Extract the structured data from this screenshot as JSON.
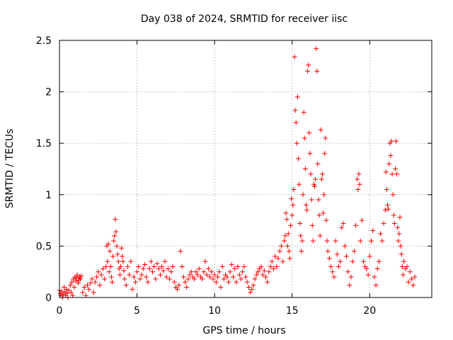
{
  "chart_data": {
    "type": "scatter",
    "title": "Day 038 of 2024, SRMTID for receiver iisc",
    "xlabel": "GPS time / hours",
    "ylabel": "SRMTID / TECUs",
    "xlim": [
      0,
      24
    ],
    "ylim": [
      0,
      2.5
    ],
    "x_ticks": [
      0,
      5,
      10,
      15,
      20
    ],
    "x_tick_labels": [
      "0",
      "5",
      "10",
      "15",
      "20"
    ],
    "y_ticks": [
      0,
      0.5,
      1,
      1.5,
      2,
      2.5
    ],
    "y_tick_labels": [
      "0",
      "0.5",
      "1",
      "1.5",
      "2",
      "2.5"
    ],
    "grid": true,
    "marker": "+",
    "marker_color": "#ff0000",
    "series": [
      {
        "name": "SRMTID",
        "points": [
          [
            0.0,
            0.07
          ],
          [
            0.05,
            0.04
          ],
          [
            0.1,
            0.02
          ],
          [
            0.15,
            0.06
          ],
          [
            0.2,
            0.0
          ],
          [
            0.25,
            0.03
          ],
          [
            0.3,
            0.1
          ],
          [
            0.35,
            0.05
          ],
          [
            0.4,
            0.02
          ],
          [
            0.45,
            0.08
          ],
          [
            0.5,
            0.04
          ],
          [
            0.55,
            0.0
          ],
          [
            0.6,
            0.07
          ],
          [
            0.7,
            0.12
          ],
          [
            0.75,
            0.05
          ],
          [
            0.8,
            0.15
          ],
          [
            0.85,
            0.02
          ],
          [
            0.9,
            0.18
          ],
          [
            0.95,
            0.1
          ],
          [
            1.0,
            0.2
          ],
          [
            1.05,
            0.16
          ],
          [
            1.1,
            0.19
          ],
          [
            1.15,
            0.22
          ],
          [
            1.2,
            0.14
          ],
          [
            1.25,
            0.17
          ],
          [
            1.3,
            0.2
          ],
          [
            1.35,
            0.18
          ],
          [
            1.4,
            0.21
          ],
          [
            1.5,
            0.05
          ],
          [
            1.6,
            0.1
          ],
          [
            1.7,
            0.02
          ],
          [
            1.8,
            0.12
          ],
          [
            1.9,
            0.08
          ],
          [
            2.0,
            0.14
          ],
          [
            2.1,
            0.18
          ],
          [
            2.2,
            0.05
          ],
          [
            2.3,
            0.15
          ],
          [
            2.4,
            0.2
          ],
          [
            2.5,
            0.25
          ],
          [
            2.6,
            0.12
          ],
          [
            2.7,
            0.22
          ],
          [
            2.8,
            0.28
          ],
          [
            2.9,
            0.18
          ],
          [
            3.0,
            0.3
          ],
          [
            3.05,
            0.5
          ],
          [
            3.1,
            0.35
          ],
          [
            3.15,
            0.52
          ],
          [
            3.2,
            0.25
          ],
          [
            3.25,
            0.45
          ],
          [
            3.3,
            0.3
          ],
          [
            3.35,
            0.2
          ],
          [
            3.4,
            0.15
          ],
          [
            3.45,
            0.4
          ],
          [
            3.5,
            0.55
          ],
          [
            3.55,
            0.6
          ],
          [
            3.6,
            0.76
          ],
          [
            3.65,
            0.64
          ],
          [
            3.7,
            0.5
          ],
          [
            3.75,
            0.42
          ],
          [
            3.8,
            0.35
          ],
          [
            3.85,
            0.28
          ],
          [
            3.9,
            0.22
          ],
          [
            3.95,
            0.3
          ],
          [
            4.0,
            0.48
          ],
          [
            4.05,
            0.4
          ],
          [
            4.1,
            0.35
          ],
          [
            4.15,
            0.26
          ],
          [
            4.2,
            0.18
          ],
          [
            4.3,
            0.12
          ],
          [
            4.4,
            0.3
          ],
          [
            4.5,
            0.22
          ],
          [
            4.6,
            0.35
          ],
          [
            4.7,
            0.08
          ],
          [
            4.8,
            0.2
          ],
          [
            4.9,
            0.15
          ],
          [
            5.0,
            0.25
          ],
          [
            5.1,
            0.3
          ],
          [
            5.2,
            0.18
          ],
          [
            5.3,
            0.22
          ],
          [
            5.4,
            0.28
          ],
          [
            5.5,
            0.32
          ],
          [
            5.6,
            0.2
          ],
          [
            5.7,
            0.15
          ],
          [
            5.8,
            0.28
          ],
          [
            5.9,
            0.35
          ],
          [
            6.0,
            0.25
          ],
          [
            6.1,
            0.3
          ],
          [
            6.2,
            0.18
          ],
          [
            6.3,
            0.33
          ],
          [
            6.4,
            0.28
          ],
          [
            6.5,
            0.22
          ],
          [
            6.6,
            0.3
          ],
          [
            6.7,
            0.26
          ],
          [
            6.8,
            0.35
          ],
          [
            6.9,
            0.2
          ],
          [
            7.0,
            0.28
          ],
          [
            7.1,
            0.18
          ],
          [
            7.2,
            0.25
          ],
          [
            7.3,
            0.3
          ],
          [
            7.4,
            0.15
          ],
          [
            7.5,
            0.1
          ],
          [
            7.6,
            0.08
          ],
          [
            7.7,
            0.12
          ],
          [
            7.8,
            0.45
          ],
          [
            7.9,
            0.3
          ],
          [
            8.0,
            0.2
          ],
          [
            8.1,
            0.15
          ],
          [
            8.2,
            0.1
          ],
          [
            8.3,
            0.18
          ],
          [
            8.4,
            0.22
          ],
          [
            8.5,
            0.25
          ],
          [
            8.6,
            0.2
          ],
          [
            8.7,
            0.18
          ],
          [
            8.8,
            0.25
          ],
          [
            8.9,
            0.22
          ],
          [
            9.0,
            0.28
          ],
          [
            9.1,
            0.2
          ],
          [
            9.2,
            0.18
          ],
          [
            9.3,
            0.25
          ],
          [
            9.4,
            0.35
          ],
          [
            9.5,
            0.22
          ],
          [
            9.6,
            0.28
          ],
          [
            9.7,
            0.2
          ],
          [
            9.8,
            0.25
          ],
          [
            9.9,
            0.18
          ],
          [
            10.0,
            0.22
          ],
          [
            10.1,
            0.15
          ],
          [
            10.2,
            0.2
          ],
          [
            10.3,
            0.25
          ],
          [
            10.4,
            0.1
          ],
          [
            10.5,
            0.3
          ],
          [
            10.6,
            0.18
          ],
          [
            10.7,
            0.22
          ],
          [
            10.8,
            0.2
          ],
          [
            10.9,
            0.15
          ],
          [
            11.0,
            0.25
          ],
          [
            11.1,
            0.32
          ],
          [
            11.2,
            0.2
          ],
          [
            11.3,
            0.28
          ],
          [
            11.4,
            0.15
          ],
          [
            11.5,
            0.3
          ],
          [
            11.6,
            0.22
          ],
          [
            11.7,
            0.18
          ],
          [
            11.8,
            0.25
          ],
          [
            11.9,
            0.3
          ],
          [
            12.0,
            0.2
          ],
          [
            12.1,
            0.15
          ],
          [
            12.2,
            0.1
          ],
          [
            12.3,
            0.05
          ],
          [
            12.4,
            0.08
          ],
          [
            12.5,
            0.12
          ],
          [
            12.6,
            0.18
          ],
          [
            12.7,
            0.22
          ],
          [
            12.8,
            0.25
          ],
          [
            12.9,
            0.28
          ],
          [
            13.0,
            0.3
          ],
          [
            13.1,
            0.22
          ],
          [
            13.2,
            0.26
          ],
          [
            13.3,
            0.2
          ],
          [
            13.4,
            0.15
          ],
          [
            13.5,
            0.25
          ],
          [
            13.6,
            0.3
          ],
          [
            13.7,
            0.35
          ],
          [
            13.8,
            0.28
          ],
          [
            13.9,
            0.4
          ],
          [
            14.0,
            0.3
          ],
          [
            14.1,
            0.38
          ],
          [
            14.2,
            0.45
          ],
          [
            14.3,
            0.5
          ],
          [
            14.4,
            0.35
          ],
          [
            14.5,
            0.55
          ],
          [
            14.55,
            0.6
          ],
          [
            14.6,
            0.82
          ],
          [
            14.65,
            0.76
          ],
          [
            14.7,
            0.5
          ],
          [
            14.75,
            0.62
          ],
          [
            14.8,
            0.45
          ],
          [
            14.85,
            0.38
          ],
          [
            14.9,
            0.7
          ],
          [
            14.95,
            0.96
          ],
          [
            15.0,
            0.8
          ],
          [
            15.05,
            0.9
          ],
          [
            15.1,
            1.05
          ],
          [
            15.15,
            2.34
          ],
          [
            15.2,
            1.82
          ],
          [
            15.25,
            1.7
          ],
          [
            15.3,
            1.5
          ],
          [
            15.35,
            1.95
          ],
          [
            15.4,
            1.35
          ],
          [
            15.45,
            1.1
          ],
          [
            15.5,
            0.72
          ],
          [
            15.55,
            0.6
          ],
          [
            15.6,
            0.45
          ],
          [
            15.65,
            0.55
          ],
          [
            15.7,
            1.0
          ],
          [
            15.75,
            1.8
          ],
          [
            15.8,
            1.55
          ],
          [
            15.85,
            1.25
          ],
          [
            15.9,
            0.9
          ],
          [
            15.95,
            0.85
          ],
          [
            16.0,
            2.2
          ],
          [
            16.05,
            2.26
          ],
          [
            16.1,
            1.6
          ],
          [
            16.15,
            1.4
          ],
          [
            16.2,
            1.2
          ],
          [
            16.25,
            0.95
          ],
          [
            16.3,
            0.7
          ],
          [
            16.35,
            0.55
          ],
          [
            16.4,
            1.1
          ],
          [
            16.45,
            1.08
          ],
          [
            16.5,
            1.15
          ],
          [
            16.55,
            2.42
          ],
          [
            16.6,
            2.2
          ],
          [
            16.65,
            1.3
          ],
          [
            16.7,
            0.95
          ],
          [
            16.75,
            0.8
          ],
          [
            16.8,
            0.6
          ],
          [
            16.85,
            1.63
          ],
          [
            16.9,
            1.15
          ],
          [
            16.95,
            1.2
          ],
          [
            17.0,
            0.82
          ],
          [
            17.05,
            1.0
          ],
          [
            17.1,
            1.4
          ],
          [
            17.15,
            1.55
          ],
          [
            17.2,
            0.75
          ],
          [
            17.25,
            0.55
          ],
          [
            17.3,
            0.45
          ],
          [
            17.4,
            0.38
          ],
          [
            17.5,
            0.3
          ],
          [
            17.6,
            0.25
          ],
          [
            17.7,
            0.2
          ],
          [
            17.8,
            0.55
          ],
          [
            17.9,
            0.42
          ],
          [
            18.0,
            0.3
          ],
          [
            18.1,
            0.35
          ],
          [
            18.2,
            0.68
          ],
          [
            18.3,
            0.72
          ],
          [
            18.4,
            0.5
          ],
          [
            18.5,
            0.4
          ],
          [
            18.6,
            0.25
          ],
          [
            18.7,
            0.12
          ],
          [
            18.8,
            0.2
          ],
          [
            18.9,
            0.35
          ],
          [
            19.0,
            0.45
          ],
          [
            19.1,
            0.7
          ],
          [
            19.2,
            1.15
          ],
          [
            19.25,
            1.05
          ],
          [
            19.3,
            1.2
          ],
          [
            19.35,
            1.1
          ],
          [
            19.4,
            0.55
          ],
          [
            19.5,
            0.75
          ],
          [
            19.6,
            0.35
          ],
          [
            19.7,
            0.3
          ],
          [
            19.8,
            0.28
          ],
          [
            19.9,
            0.22
          ],
          [
            20.0,
            0.4
          ],
          [
            20.1,
            0.55
          ],
          [
            20.2,
            0.65
          ],
          [
            20.3,
            0.2
          ],
          [
            20.4,
            0.12
          ],
          [
            20.5,
            0.28
          ],
          [
            20.6,
            0.35
          ],
          [
            20.7,
            0.62
          ],
          [
            20.8,
            0.55
          ],
          [
            20.9,
            0.72
          ],
          [
            21.0,
            0.85
          ],
          [
            21.05,
            1.22
          ],
          [
            21.1,
            1.05
          ],
          [
            21.15,
            0.9
          ],
          [
            21.2,
            0.86
          ],
          [
            21.25,
            1.3
          ],
          [
            21.3,
            1.5
          ],
          [
            21.35,
            1.38
          ],
          [
            21.4,
            1.52
          ],
          [
            21.45,
            1.2
          ],
          [
            21.5,
            1.0
          ],
          [
            21.55,
            0.8
          ],
          [
            21.6,
            0.72
          ],
          [
            21.65,
            1.25
          ],
          [
            21.7,
            1.52
          ],
          [
            21.75,
            1.2
          ],
          [
            21.8,
            0.68
          ],
          [
            21.85,
            0.55
          ],
          [
            21.9,
            0.62
          ],
          [
            21.95,
            0.78
          ],
          [
            22.0,
            0.5
          ],
          [
            22.05,
            0.42
          ],
          [
            22.1,
            0.3
          ],
          [
            22.15,
            0.22
          ],
          [
            22.2,
            0.35
          ],
          [
            22.3,
            0.28
          ],
          [
            22.4,
            0.3
          ],
          [
            22.5,
            0.15
          ],
          [
            22.6,
            0.25
          ],
          [
            22.7,
            0.18
          ],
          [
            22.8,
            0.12
          ],
          [
            22.9,
            0.2
          ]
        ]
      }
    ]
  }
}
